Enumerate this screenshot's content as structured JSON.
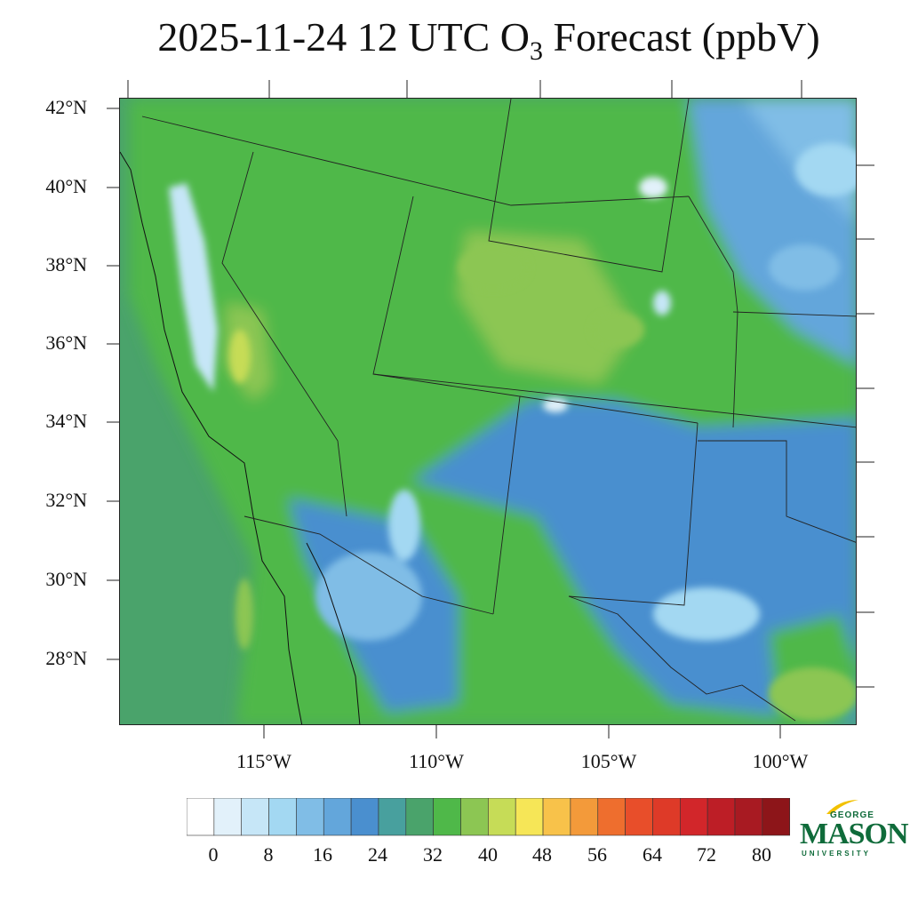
{
  "title": {
    "main": "2025-11-24 12 UTC O",
    "subscript": "3",
    "suffix": " Forecast (ppbV)"
  },
  "map": {
    "lat_labels": [
      "42°N",
      "40°N",
      "38°N",
      "36°N",
      "34°N",
      "32°N",
      "30°N",
      "28°N"
    ],
    "lon_labels": [
      "115°W",
      "110°W",
      "105°W",
      "100°W"
    ]
  },
  "colorbar": {
    "labels": [
      "0",
      "8",
      "16",
      "24",
      "32",
      "40",
      "48",
      "56",
      "64",
      "72",
      "80"
    ],
    "colors": [
      "#ffffff",
      "#e2f1fa",
      "#c6e6f7",
      "#a3d8f2",
      "#80bde6",
      "#63a6db",
      "#4a8fcf",
      "#48a09e",
      "#4aa36b",
      "#4fb849",
      "#8cc653",
      "#c6dc57",
      "#f6e657",
      "#f8c24a",
      "#f39a3a",
      "#ee6e2e",
      "#e84e2a",
      "#de3a28",
      "#d2262a",
      "#bd1e26",
      "#a81a22",
      "#8d1519"
    ]
  },
  "logo": {
    "line1": "GEORGE",
    "line2": "MASON",
    "line3": "UNIVERSITY",
    "color": "#0f6b3a",
    "accent": "#f2c100"
  }
}
